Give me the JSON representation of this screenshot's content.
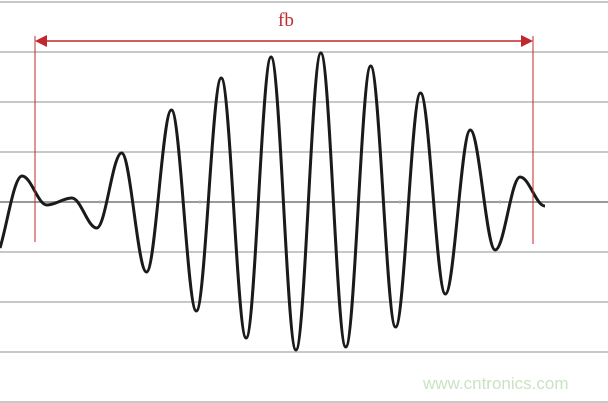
{
  "annotation": {
    "label": "fb",
    "color": "#c0282d"
  },
  "watermark": "www.cntronics.com",
  "chart_data": {
    "type": "line",
    "title": "",
    "xlabel": "",
    "ylabel": "",
    "grid": true,
    "ylim": [
      -4,
      4
    ],
    "start_value": -0.92,
    "extrema": [
      0.52,
      -0.06,
      0.08,
      -0.52,
      0.98,
      -1.4,
      1.84,
      -2.18,
      2.48,
      -2.72,
      2.9,
      -2.96,
      2.98,
      -2.9,
      2.72,
      -2.5,
      2.18,
      -1.84,
      1.44,
      -0.96,
      0.5,
      -0.08
    ],
    "line_color": "#1a1a1a",
    "grid_color": "#c8c8c8"
  }
}
